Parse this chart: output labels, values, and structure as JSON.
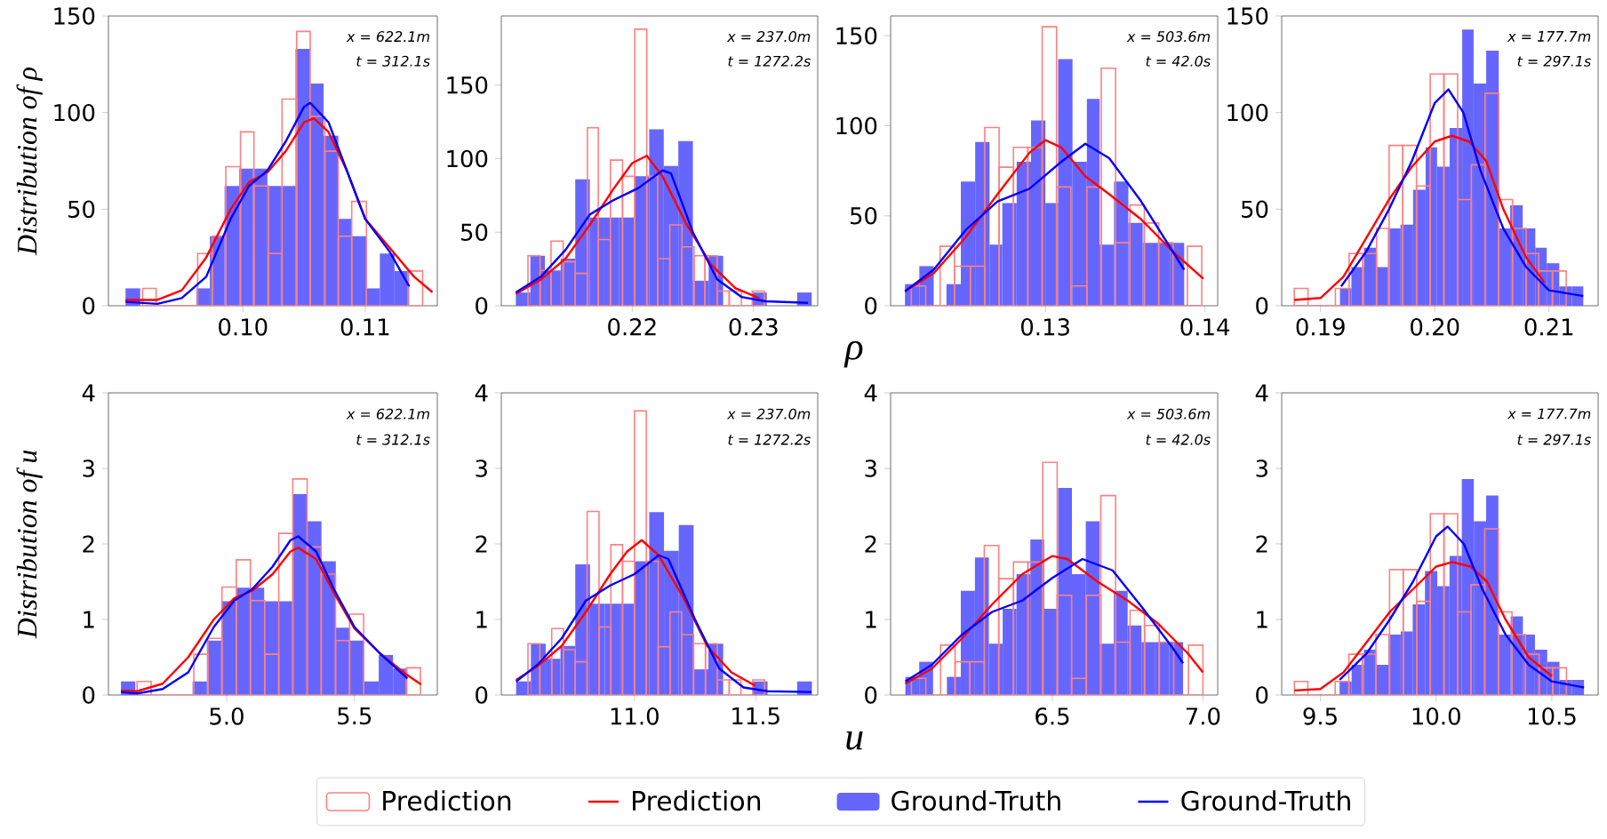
{
  "chart_data": [
    {
      "type": "histogram",
      "ylabel": "Distribution of ρ",
      "legend": "bottom",
      "xlim": [
        0.089,
        0.1159
      ],
      "ylim": [
        0,
        150
      ],
      "xticks": [
        {
          "value": 0.1,
          "label": "0.10"
        },
        {
          "value": 0.11,
          "label": "0.11"
        }
      ],
      "yticks": [
        0,
        50,
        100,
        150
      ],
      "annotations": [
        "x = 622.1m",
        "t = 312.1s"
      ],
      "series": [
        {
          "name": "Prediction",
          "color": "#ff8080",
          "bins": [
            0.0918,
            0.0929,
            0.0963,
            0.0975,
            0.0986,
            0.0998,
            0.1009,
            0.1021,
            0.1032,
            0.1044,
            0.1055,
            0.1067,
            0.1078,
            0.1089,
            0.1101,
            0.1135,
            0.1147
          ],
          "values": [
            9,
            0,
            27,
            36,
            72,
            90,
            62,
            27,
            107,
            142,
            98,
            80,
            36,
            54,
            0,
            18
          ]
        },
        {
          "name": "Prediction",
          "type": "line",
          "color": "#ff0000",
          "x": [
            0.0904,
            0.093,
            0.095,
            0.097,
            0.099,
            0.1005,
            0.102,
            0.1035,
            0.105,
            0.1058,
            0.107,
            0.1085,
            0.11,
            0.112,
            0.114,
            0.1155
          ],
          "values": [
            3,
            3,
            8,
            25,
            50,
            64,
            69,
            80,
            95,
            97,
            90,
            70,
            45,
            30,
            15,
            7
          ]
        },
        {
          "name": "Ground-Truth",
          "color": "#6666ff",
          "bins": [
            0.0904,
            0.0916,
            0.0962,
            0.0973,
            0.0985,
            0.0997,
            0.1008,
            0.102,
            0.1031,
            0.1043,
            0.1055,
            0.1066,
            0.1078,
            0.1089,
            0.1101,
            0.1112,
            0.1124,
            0.1136
          ],
          "values": [
            9,
            0,
            9,
            36,
            62,
            71,
            71,
            62,
            62,
            133,
            115,
            88,
            45,
            36,
            9,
            27,
            18
          ]
        },
        {
          "name": "Ground-Truth",
          "type": "line",
          "color": "#0000ff",
          "x": [
            0.0904,
            0.093,
            0.095,
            0.097,
            0.099,
            0.1005,
            0.102,
            0.1035,
            0.105,
            0.1055,
            0.107,
            0.1085,
            0.11,
            0.112,
            0.1136
          ],
          "values": [
            2,
            1,
            4,
            15,
            45,
            62,
            70,
            85,
            103,
            105,
            95,
            70,
            45,
            28,
            10
          ]
        }
      ]
    },
    {
      "type": "histogram",
      "xlim": [
        0.2092,
        0.2353
      ],
      "ylim": [
        0,
        197
      ],
      "xticks": [
        {
          "value": 0.22,
          "label": "0.22"
        },
        {
          "value": 0.23,
          "label": "0.23"
        }
      ],
      "yticks": [
        0,
        50,
        100,
        150
      ],
      "annotations": [
        "x = 237.0m",
        "t = 1272.2s"
      ],
      "series": [
        {
          "color": "#ff8080",
          "bins": [
            0.2114,
            0.2124,
            0.2133,
            0.2143,
            0.2153,
            0.2163,
            0.2172,
            0.2182,
            0.2192,
            0.2202,
            0.2212,
            0.2221,
            0.2231,
            0.2241,
            0.2251,
            0.226,
            0.227,
            0.228,
            0.229,
            0.2299,
            0.2309
          ],
          "values": [
            34,
            24,
            44,
            30,
            22,
            121,
            45,
            99,
            88,
            188,
            88,
            32,
            55,
            40,
            34,
            34,
            10,
            10,
            0,
            10
          ]
        },
        {
          "type": "line",
          "color": "#ff0000",
          "x": [
            0.2104,
            0.2125,
            0.2145,
            0.2165,
            0.2185,
            0.22,
            0.2212,
            0.2225,
            0.2245,
            0.2265,
            0.2285,
            0.2305
          ],
          "values": [
            8,
            18,
            32,
            55,
            80,
            97,
            102,
            88,
            55,
            28,
            12,
            5
          ]
        },
        {
          "color": "#6666ff",
          "bins": [
            0.2104,
            0.2116,
            0.2128,
            0.2141,
            0.2153,
            0.2165,
            0.2177,
            0.2189,
            0.2202,
            0.2214,
            0.2226,
            0.2238,
            0.225,
            0.2263,
            0.2275,
            0.2299,
            0.2311,
            0.2336,
            0.2348
          ],
          "values": [
            9,
            34,
            24,
            32,
            86,
            60,
            60,
            60,
            88,
            120,
            95,
            112,
            17,
            34,
            0,
            9,
            0,
            9
          ]
        },
        {
          "type": "line",
          "color": "#0000ff",
          "x": [
            0.2104,
            0.2125,
            0.2145,
            0.2165,
            0.2185,
            0.2205,
            0.2225,
            0.2232,
            0.225,
            0.227,
            0.229,
            0.231,
            0.2345
          ],
          "values": [
            9,
            20,
            38,
            62,
            72,
            80,
            92,
            90,
            50,
            18,
            6,
            3,
            2
          ]
        }
      ]
    },
    {
      "type": "histogram",
      "xlabel": "ρ",
      "xlim": [
        0.1203,
        0.1408
      ],
      "ylim": [
        0,
        161
      ],
      "xticks": [
        {
          "value": 0.13,
          "label": "0.13"
        },
        {
          "value": 0.14,
          "label": "0.14"
        }
      ],
      "yticks": [
        0,
        50,
        100,
        150
      ],
      "annotations": [
        "x = 503.6m",
        "t = 42.0s"
      ],
      "series": [
        {
          "color": "#ff8080",
          "bins": [
            0.1216,
            0.1225,
            0.1234,
            0.1243,
            0.1253,
            0.1262,
            0.1271,
            0.128,
            0.1289,
            0.1298,
            0.1307,
            0.1316,
            0.1326,
            0.1335,
            0.1344,
            0.1353,
            0.1362,
            0.1371,
            0.138,
            0.1389,
            0.1398
          ],
          "values": [
            11,
            0,
            33,
            22,
            22,
            99,
            77,
            88,
            88,
            155,
            66,
            11,
            66,
            132,
            35,
            56,
            46,
            35,
            0,
            33
          ]
        },
        {
          "type": "line",
          "color": "#ff0000",
          "x": [
            0.1212,
            0.123,
            0.125,
            0.127,
            0.129,
            0.13,
            0.131,
            0.1325,
            0.134,
            0.136,
            0.138,
            0.1399
          ],
          "values": [
            8,
            18,
            38,
            62,
            85,
            92,
            88,
            72,
            62,
            48,
            30,
            15
          ]
        },
        {
          "color": "#6666ff",
          "bins": [
            0.1212,
            0.1221,
            0.123,
            0.1238,
            0.1247,
            0.1256,
            0.1265,
            0.1273,
            0.1282,
            0.1291,
            0.13,
            0.1308,
            0.1317,
            0.1326,
            0.1334,
            0.1343,
            0.1352,
            0.1361,
            0.1369,
            0.1378,
            0.1387
          ],
          "values": [
            12,
            22,
            0,
            12,
            69,
            91,
            34,
            57,
            80,
            103,
            57,
            137,
            80,
            115,
            34,
            69,
            46,
            35,
            35,
            35
          ]
        },
        {
          "type": "line",
          "color": "#0000ff",
          "x": [
            0.1212,
            0.123,
            0.125,
            0.127,
            0.129,
            0.131,
            0.1325,
            0.134,
            0.136,
            0.1387
          ],
          "values": [
            8,
            20,
            42,
            58,
            65,
            80,
            90,
            82,
            58,
            20
          ]
        }
      ]
    },
    {
      "type": "histogram",
      "xlim": [
        0.1866,
        0.2143
      ],
      "ylim": [
        0,
        150
      ],
      "xticks": [
        {
          "value": 0.19,
          "label": "0.19"
        },
        {
          "value": 0.2,
          "label": "0.20"
        },
        {
          "value": 0.21,
          "label": "0.21"
        }
      ],
      "yticks": [
        0,
        50,
        100,
        150
      ],
      "annotations": [
        "x = 177.7m",
        "t = 297.1s"
      ],
      "series": [
        {
          "color": "#ff8080",
          "bins": [
            0.1877,
            0.1889,
            0.1913,
            0.1925,
            0.1937,
            0.1949,
            0.196,
            0.1972,
            0.1984,
            0.1996,
            0.2008,
            0.202,
            0.2032,
            0.2044,
            0.2056,
            0.2068,
            0.208,
            0.2091,
            0.2103,
            0.2115
          ],
          "values": [
            9,
            0,
            9,
            27,
            27,
            40,
            83,
            83,
            62,
            120,
            120,
            55,
            73,
            110,
            55,
            40,
            27,
            18,
            18
          ]
        },
        {
          "type": "line",
          "color": "#ff0000",
          "x": [
            0.1877,
            0.19,
            0.192,
            0.194,
            0.196,
            0.198,
            0.2,
            0.2015,
            0.203,
            0.2045,
            0.206,
            0.208,
            0.2096
          ],
          "values": [
            3,
            4,
            15,
            35,
            55,
            72,
            85,
            88,
            85,
            75,
            50,
            25,
            12
          ]
        },
        {
          "color": "#6666ff",
          "bins": [
            0.1917,
            0.1927,
            0.1938,
            0.1949,
            0.1959,
            0.197,
            0.1981,
            0.1992,
            0.2002,
            0.2013,
            0.2024,
            0.2034,
            0.2045,
            0.2056,
            0.2066,
            0.2077,
            0.2088,
            0.2098,
            0.2109,
            0.212,
            0.213
          ],
          "values": [
            9,
            20,
            30,
            20,
            40,
            42,
            60,
            82,
            72,
            92,
            143,
            115,
            132,
            40,
            52,
            40,
            30,
            22,
            10,
            10
          ]
        },
        {
          "type": "line",
          "color": "#0000ff",
          "x": [
            0.1918,
            0.194,
            0.196,
            0.198,
            0.2,
            0.2012,
            0.2025,
            0.204,
            0.206,
            0.208,
            0.21,
            0.213
          ],
          "values": [
            10,
            28,
            50,
            75,
            105,
            112,
            100,
            70,
            40,
            20,
            8,
            5
          ]
        }
      ]
    },
    {
      "type": "histogram",
      "ylabel": "Distribution of u",
      "xlim": [
        4.538,
        5.824
      ],
      "ylim": [
        0,
        4
      ],
      "xticks": [
        {
          "value": 5,
          "label": "5.0"
        },
        5.5
      ],
      "yticks": [
        0,
        1,
        2,
        3,
        4
      ],
      "annotations": [
        "x = 622.1m",
        "t = 312.1s"
      ],
      "series": [
        {
          "color": "#ff8080",
          "bins": [
            4.65,
            4.705,
            4.872,
            4.927,
            4.982,
            5.038,
            5.093,
            5.149,
            5.204,
            5.259,
            5.315,
            5.37,
            5.426,
            5.481,
            5.536,
            5.703,
            5.758
          ],
          "values": [
            0.18,
            0,
            0.54,
            0.75,
            1.43,
            1.79,
            1.25,
            0.54,
            2.14,
            2.86,
            1.96,
            1.6,
            0.72,
            1.07,
            0,
            0.36
          ]
        },
        {
          "type": "line",
          "color": "#ff0000",
          "x": [
            4.587,
            4.65,
            4.75,
            4.85,
            4.95,
            5.03,
            5.1,
            5.18,
            5.25,
            5.28,
            5.35,
            5.42,
            5.5,
            5.6,
            5.7,
            5.76
          ],
          "values": [
            0.06,
            0.05,
            0.15,
            0.5,
            1.0,
            1.28,
            1.38,
            1.6,
            1.9,
            1.95,
            1.8,
            1.35,
            0.88,
            0.55,
            0.28,
            0.14
          ]
        },
        {
          "color": "#6666ff",
          "bins": [
            4.587,
            4.643,
            4.867,
            4.923,
            4.979,
            5.035,
            5.091,
            5.147,
            5.203,
            5.259,
            5.315,
            5.371,
            5.427,
            5.483,
            5.539,
            5.595,
            5.651,
            5.707
          ],
          "values": [
            0.18,
            0,
            0.18,
            0.72,
            1.24,
            1.42,
            1.42,
            1.24,
            1.24,
            2.66,
            2.3,
            1.77,
            0.89,
            0.72,
            0.18,
            0.53,
            0.35
          ]
        },
        {
          "type": "line",
          "color": "#0000ff",
          "x": [
            4.587,
            4.65,
            4.75,
            4.85,
            4.95,
            5.03,
            5.1,
            5.18,
            5.25,
            5.28,
            5.35,
            5.42,
            5.5,
            5.6,
            5.707
          ],
          "values": [
            0.04,
            0.02,
            0.08,
            0.3,
            0.9,
            1.25,
            1.4,
            1.7,
            2.05,
            2.1,
            1.9,
            1.4,
            0.9,
            0.55,
            0.22
          ]
        }
      ]
    },
    {
      "type": "histogram",
      "xlim": [
        10.451,
        11.756
      ],
      "ylim": [
        0,
        4
      ],
      "xticks": [
        {
          "value": 11,
          "label": "11.0"
        },
        11.5
      ],
      "yticks": [
        0,
        1,
        2,
        3,
        4
      ],
      "annotations": [
        "x = 237.0m",
        "t = 1272.2s"
      ],
      "series": [
        {
          "color": "#ff8080",
          "bins": [
            10.561,
            10.61,
            10.659,
            10.707,
            10.756,
            10.805,
            10.854,
            10.903,
            10.951,
            11.0,
            11.049,
            11.098,
            11.147,
            11.195,
            11.244,
            11.293,
            11.342,
            11.391,
            11.439,
            11.488,
            11.537
          ],
          "values": [
            0.68,
            0.48,
            0.88,
            0.6,
            0.44,
            2.43,
            0.9,
            1.99,
            1.77,
            3.76,
            1.77,
            0.64,
            1.1,
            0.8,
            0.68,
            0.68,
            0.2,
            0.2,
            0,
            0.2
          ]
        },
        {
          "type": "line",
          "color": "#ff0000",
          "x": [
            10.512,
            10.6,
            10.7,
            10.8,
            10.9,
            10.97,
            11.03,
            11.1,
            11.2,
            11.3,
            11.4,
            11.5
          ],
          "values": [
            0.2,
            0.38,
            0.65,
            1.1,
            1.6,
            1.9,
            2.05,
            1.85,
            1.3,
            0.65,
            0.3,
            0.12
          ]
        },
        {
          "color": "#6666ff",
          "bins": [
            10.512,
            10.573,
            10.634,
            10.695,
            10.756,
            10.817,
            10.878,
            10.939,
            11.0,
            11.061,
            11.122,
            11.183,
            11.244,
            11.305,
            11.366,
            11.488,
            11.549,
            11.671,
            11.732
          ],
          "values": [
            0.18,
            0.68,
            0.48,
            0.65,
            1.73,
            1.21,
            1.21,
            1.21,
            1.77,
            2.42,
            1.91,
            2.25,
            0.34,
            0.68,
            0,
            0.18,
            0,
            0.18
          ]
        },
        {
          "type": "line",
          "color": "#0000ff",
          "x": [
            10.512,
            10.6,
            10.7,
            10.8,
            10.9,
            11.0,
            11.1,
            11.14,
            11.25,
            11.35,
            11.45,
            11.55,
            11.73
          ],
          "values": [
            0.18,
            0.4,
            0.75,
            1.25,
            1.45,
            1.6,
            1.85,
            1.8,
            1.0,
            0.35,
            0.1,
            0.05,
            0.04
          ]
        }
      ]
    },
    {
      "type": "histogram",
      "xlabel": "u",
      "xlim": [
        5.963,
        7.049
      ],
      "ylim": [
        0,
        4
      ],
      "xticks": [
        6.5,
        {
          "value": 7,
          "label": "7.0"
        }
      ],
      "yticks": [
        0,
        1,
        2,
        3,
        4
      ],
      "annotations": [
        "x = 503.6m",
        "t = 42.0s"
      ],
      "series": [
        {
          "color": "#ff8080",
          "bins": [
            6.032,
            6.08,
            6.129,
            6.177,
            6.226,
            6.274,
            6.322,
            6.371,
            6.419,
            6.468,
            6.516,
            6.564,
            6.613,
            6.661,
            6.71,
            6.758,
            6.806,
            6.855,
            6.903,
            6.952,
            7.0
          ],
          "values": [
            0.22,
            0,
            0.66,
            0.44,
            0.44,
            1.98,
            1.54,
            1.76,
            1.76,
            3.08,
            1.32,
            0.22,
            1.32,
            2.64,
            0.7,
            1.12,
            0.92,
            0.7,
            0,
            0.66
          ]
        },
        {
          "type": "line",
          "color": "#ff0000",
          "x": [
            6.012,
            6.1,
            6.2,
            6.3,
            6.4,
            6.5,
            6.55,
            6.65,
            6.75,
            6.85,
            6.95,
            7.0
          ],
          "values": [
            0.15,
            0.35,
            0.75,
            1.2,
            1.6,
            1.84,
            1.8,
            1.5,
            1.25,
            0.95,
            0.55,
            0.3
          ]
        },
        {
          "color": "#6666ff",
          "bins": [
            6.012,
            6.058,
            6.104,
            6.15,
            6.196,
            6.243,
            6.289,
            6.335,
            6.381,
            6.427,
            6.473,
            6.519,
            6.565,
            6.611,
            6.657,
            6.704,
            6.75,
            6.796,
            6.842,
            6.888,
            6.934
          ],
          "values": [
            0.24,
            0.44,
            0,
            0.24,
            1.38,
            1.82,
            0.68,
            1.14,
            1.6,
            2.06,
            1.14,
            2.74,
            1.6,
            2.3,
            0.68,
            1.38,
            0.92,
            0.7,
            0.7,
            0.7
          ]
        },
        {
          "type": "line",
          "color": "#0000ff",
          "x": [
            6.012,
            6.1,
            6.2,
            6.3,
            6.4,
            6.5,
            6.6,
            6.7,
            6.8,
            6.9,
            6.934
          ],
          "values": [
            0.18,
            0.4,
            0.8,
            1.1,
            1.25,
            1.55,
            1.8,
            1.65,
            1.15,
            0.62,
            0.42
          ]
        }
      ]
    },
    {
      "type": "histogram",
      "xlim": [
        9.333,
        10.7
      ],
      "ylim": [
        0,
        4
      ],
      "xticks": [
        9.5,
        {
          "value": 10,
          "label": "10.0"
        },
        10.5
      ],
      "yticks": [
        0,
        1,
        2,
        3,
        4
      ],
      "annotations": [
        "x = 177.7m",
        "t = 297.1s"
      ],
      "series": [
        {
          "color": "#ff8080",
          "bins": [
            9.388,
            9.446,
            9.564,
            9.623,
            9.681,
            9.74,
            9.799,
            9.858,
            9.916,
            9.975,
            10.034,
            10.093,
            10.151,
            10.21,
            10.269,
            10.328,
            10.386,
            10.445,
            10.504,
            10.563
          ],
          "values": [
            0.18,
            0,
            0.18,
            0.54,
            0.54,
            0.8,
            1.66,
            1.66,
            1.24,
            2.4,
            2.4,
            1.1,
            1.46,
            2.2,
            1.1,
            0.8,
            0.54,
            0.36,
            0.36
          ]
        },
        {
          "type": "line",
          "color": "#ff0000",
          "x": [
            9.388,
            9.5,
            9.6,
            9.7,
            9.8,
            9.9,
            10.0,
            10.07,
            10.15,
            10.22,
            10.3,
            10.4,
            10.5
          ],
          "values": [
            0.06,
            0.08,
            0.3,
            0.7,
            1.1,
            1.4,
            1.7,
            1.76,
            1.7,
            1.5,
            1.0,
            0.5,
            0.25
          ]
        },
        {
          "color": "#6666ff",
          "bins": [
            9.583,
            9.635,
            9.688,
            9.741,
            9.794,
            9.847,
            9.899,
            9.952,
            10.005,
            10.058,
            10.111,
            10.163,
            10.216,
            10.269,
            10.322,
            10.375,
            10.427,
            10.48,
            10.533,
            10.586,
            10.639
          ],
          "values": [
            0.18,
            0.4,
            0.6,
            0.4,
            0.8,
            0.84,
            1.2,
            1.64,
            1.44,
            1.84,
            2.86,
            2.3,
            2.64,
            0.8,
            1.04,
            0.8,
            0.6,
            0.44,
            0.2,
            0.2
          ]
        },
        {
          "type": "line",
          "color": "#0000ff",
          "x": [
            9.583,
            9.7,
            9.8,
            9.9,
            10.0,
            10.05,
            10.12,
            10.2,
            10.3,
            10.4,
            10.5,
            10.639
          ],
          "values": [
            0.2,
            0.55,
            1.0,
            1.5,
            2.1,
            2.23,
            2.0,
            1.4,
            0.8,
            0.4,
            0.18,
            0.1
          ]
        }
      ]
    }
  ]
}
